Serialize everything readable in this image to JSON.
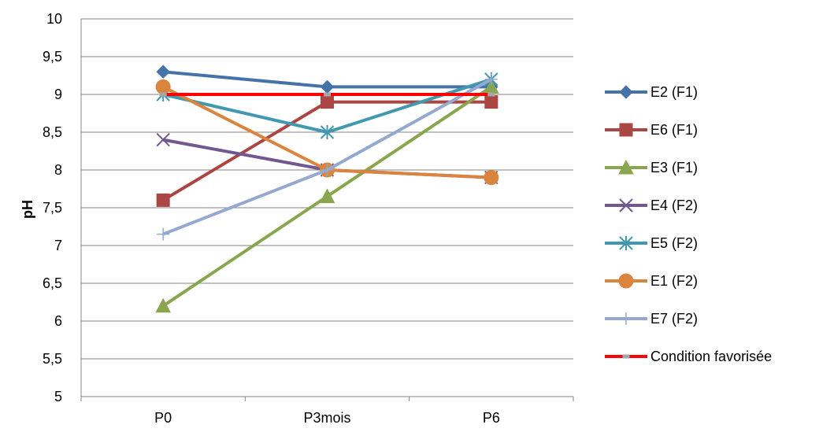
{
  "chart_data": {
    "type": "line",
    "title": "",
    "xlabel": "",
    "ylabel": "pH",
    "categories": [
      "P0",
      "P3mois",
      "P6"
    ],
    "ylim": [
      5,
      10
    ],
    "y_ticks": [
      "5",
      "5,5",
      "6",
      "6,5",
      "7",
      "7,5",
      "8",
      "8,5",
      "9",
      "9,5",
      "10"
    ],
    "grid": true,
    "legend_position": "right",
    "series": [
      {
        "name": "E2 (F1)",
        "values": [
          9.3,
          9.1,
          9.1
        ],
        "color": "#4572A7",
        "marker": "diamond"
      },
      {
        "name": "E6 (F1)",
        "values": [
          7.6,
          8.9,
          8.9
        ],
        "color": "#AA4643",
        "marker": "square"
      },
      {
        "name": "E3 (F1)",
        "values": [
          6.2,
          7.65,
          9.1
        ],
        "color": "#89A54E",
        "marker": "triangle"
      },
      {
        "name": "E4 (F2)",
        "values": [
          8.4,
          8.0,
          7.9
        ],
        "color": "#71588F",
        "marker": "x"
      },
      {
        "name": "E5 (F2)",
        "values": [
          9.0,
          8.5,
          9.2
        ],
        "color": "#4198AF",
        "marker": "asterisk"
      },
      {
        "name": "E1 (F2)",
        "values": [
          9.1,
          8.0,
          7.9
        ],
        "color": "#DB843D",
        "marker": "circle"
      },
      {
        "name": "E7 (F2)",
        "values": [
          7.15,
          8.0,
          9.2
        ],
        "color": "#93A9CF",
        "marker": "plus"
      },
      {
        "name": "Condition favorisée",
        "values": [
          9.0,
          9.0,
          9.0
        ],
        "color": "#FF0000",
        "marker": "dash"
      }
    ]
  }
}
